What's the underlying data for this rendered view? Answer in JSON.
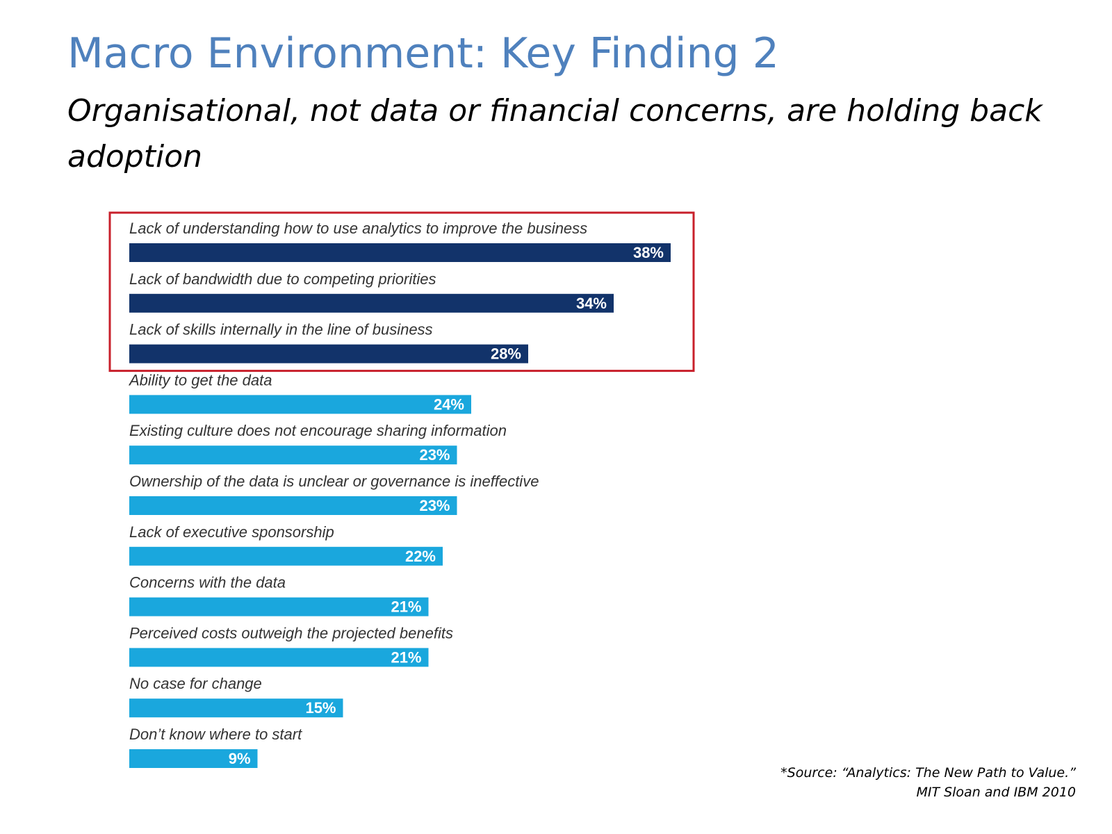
{
  "slide": {
    "title": "Macro Environment: Key Finding 2",
    "subtitle": "Organisational, not data or financial concerns, are holding back adoption",
    "source_line1": "*Source: “Analytics: The New Path to Value.”",
    "source_line2": "MIT Sloan and IBM 2010"
  },
  "colors": {
    "title": "#4f81bd",
    "highlight_bar": "#12336a",
    "regular_bar": "#1aa7dd",
    "highlight_box": "#c8202b",
    "label_text": "#333333",
    "value_text": "#ffffff"
  },
  "chart_data": {
    "type": "bar",
    "orientation": "horizontal",
    "categories": [
      "Lack of understanding how to use analytics to improve the business",
      "Lack of bandwidth due to competing priorities",
      "Lack of skills internally in the line of business",
      "Ability to get the data",
      "Existing culture does not encourage sharing information",
      "Ownership of the data is unclear or governance is ineffective",
      "Lack of executive sponsorship",
      "Concerns with the data",
      "Perceived costs outweigh the projected benefits",
      "No case for change",
      "Don’t know where to start"
    ],
    "values": [
      38,
      34,
      28,
      24,
      23,
      23,
      22,
      21,
      21,
      15,
      9
    ],
    "value_labels": [
      "38%",
      "34%",
      "28%",
      "24%",
      "23%",
      "23%",
      "22%",
      "21%",
      "21%",
      "15%",
      "9%"
    ],
    "highlighted": [
      true,
      true,
      true,
      false,
      false,
      false,
      false,
      false,
      false,
      false,
      false
    ],
    "unit": "%",
    "grid": false,
    "legend": "none"
  }
}
